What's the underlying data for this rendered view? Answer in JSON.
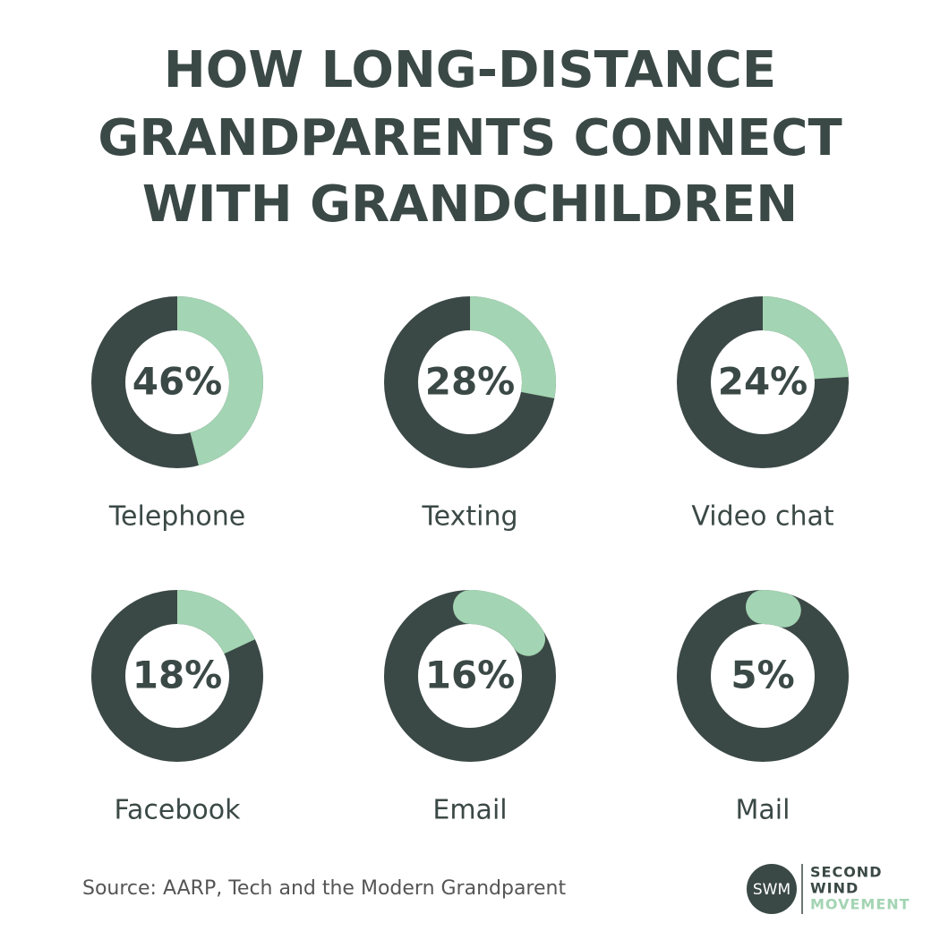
{
  "title_lines": [
    "HOW LONG-DISTANCE",
    "GRANDPARENTS CONNECT",
    "WITH GRANDCHILDREN"
  ],
  "chart_data": [
    {
      "type": "donut",
      "title": "Telephone",
      "values": [
        46
      ],
      "value_labels": [
        "46%"
      ],
      "color": "#a3d4b3",
      "track_color": "#3b4946",
      "cap": "butt"
    },
    {
      "type": "donut",
      "title": "Texting",
      "values": [
        28
      ],
      "value_labels": [
        "28%"
      ],
      "color": "#a3d4b3",
      "track_color": "#3b4946",
      "cap": "butt"
    },
    {
      "type": "donut",
      "title": "Video chat",
      "values": [
        24
      ],
      "value_labels": [
        "24%"
      ],
      "color": "#a3d4b3",
      "track_color": "#3b4946",
      "cap": "butt"
    },
    {
      "type": "donut",
      "title": "Facebook",
      "values": [
        18
      ],
      "value_labels": [
        "18%"
      ],
      "color": "#a3d4b3",
      "track_color": "#3b4946",
      "cap": "butt"
    },
    {
      "type": "donut",
      "title": "Email",
      "values": [
        16
      ],
      "value_labels": [
        "16%"
      ],
      "color": "#a3d4b3",
      "track_color": "#3b4946",
      "cap": "round"
    },
    {
      "type": "donut",
      "title": "Mail",
      "values": [
        5
      ],
      "value_labels": [
        "5%"
      ],
      "color": "#a3d4b3",
      "track_color": "#3b4946",
      "cap": "round"
    }
  ],
  "source": "Source: AARP, Tech and the Modern Grandparent",
  "logo": {
    "initials": "SWM",
    "lines": [
      "SECOND",
      "WIND",
      "MOVEMENT"
    ]
  }
}
